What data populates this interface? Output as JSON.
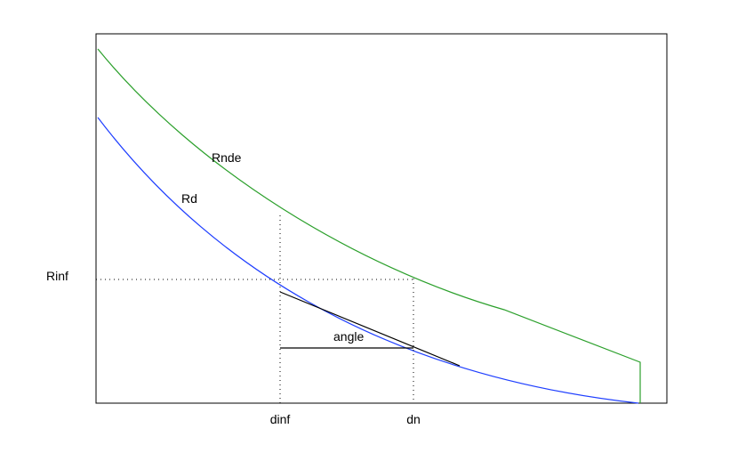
{
  "labels": {
    "rinf": "Rinf",
    "dinf": "dinf",
    "dn": "dn",
    "rd": "Rd",
    "rnde": "Rnde",
    "angle": "angle"
  }
}
